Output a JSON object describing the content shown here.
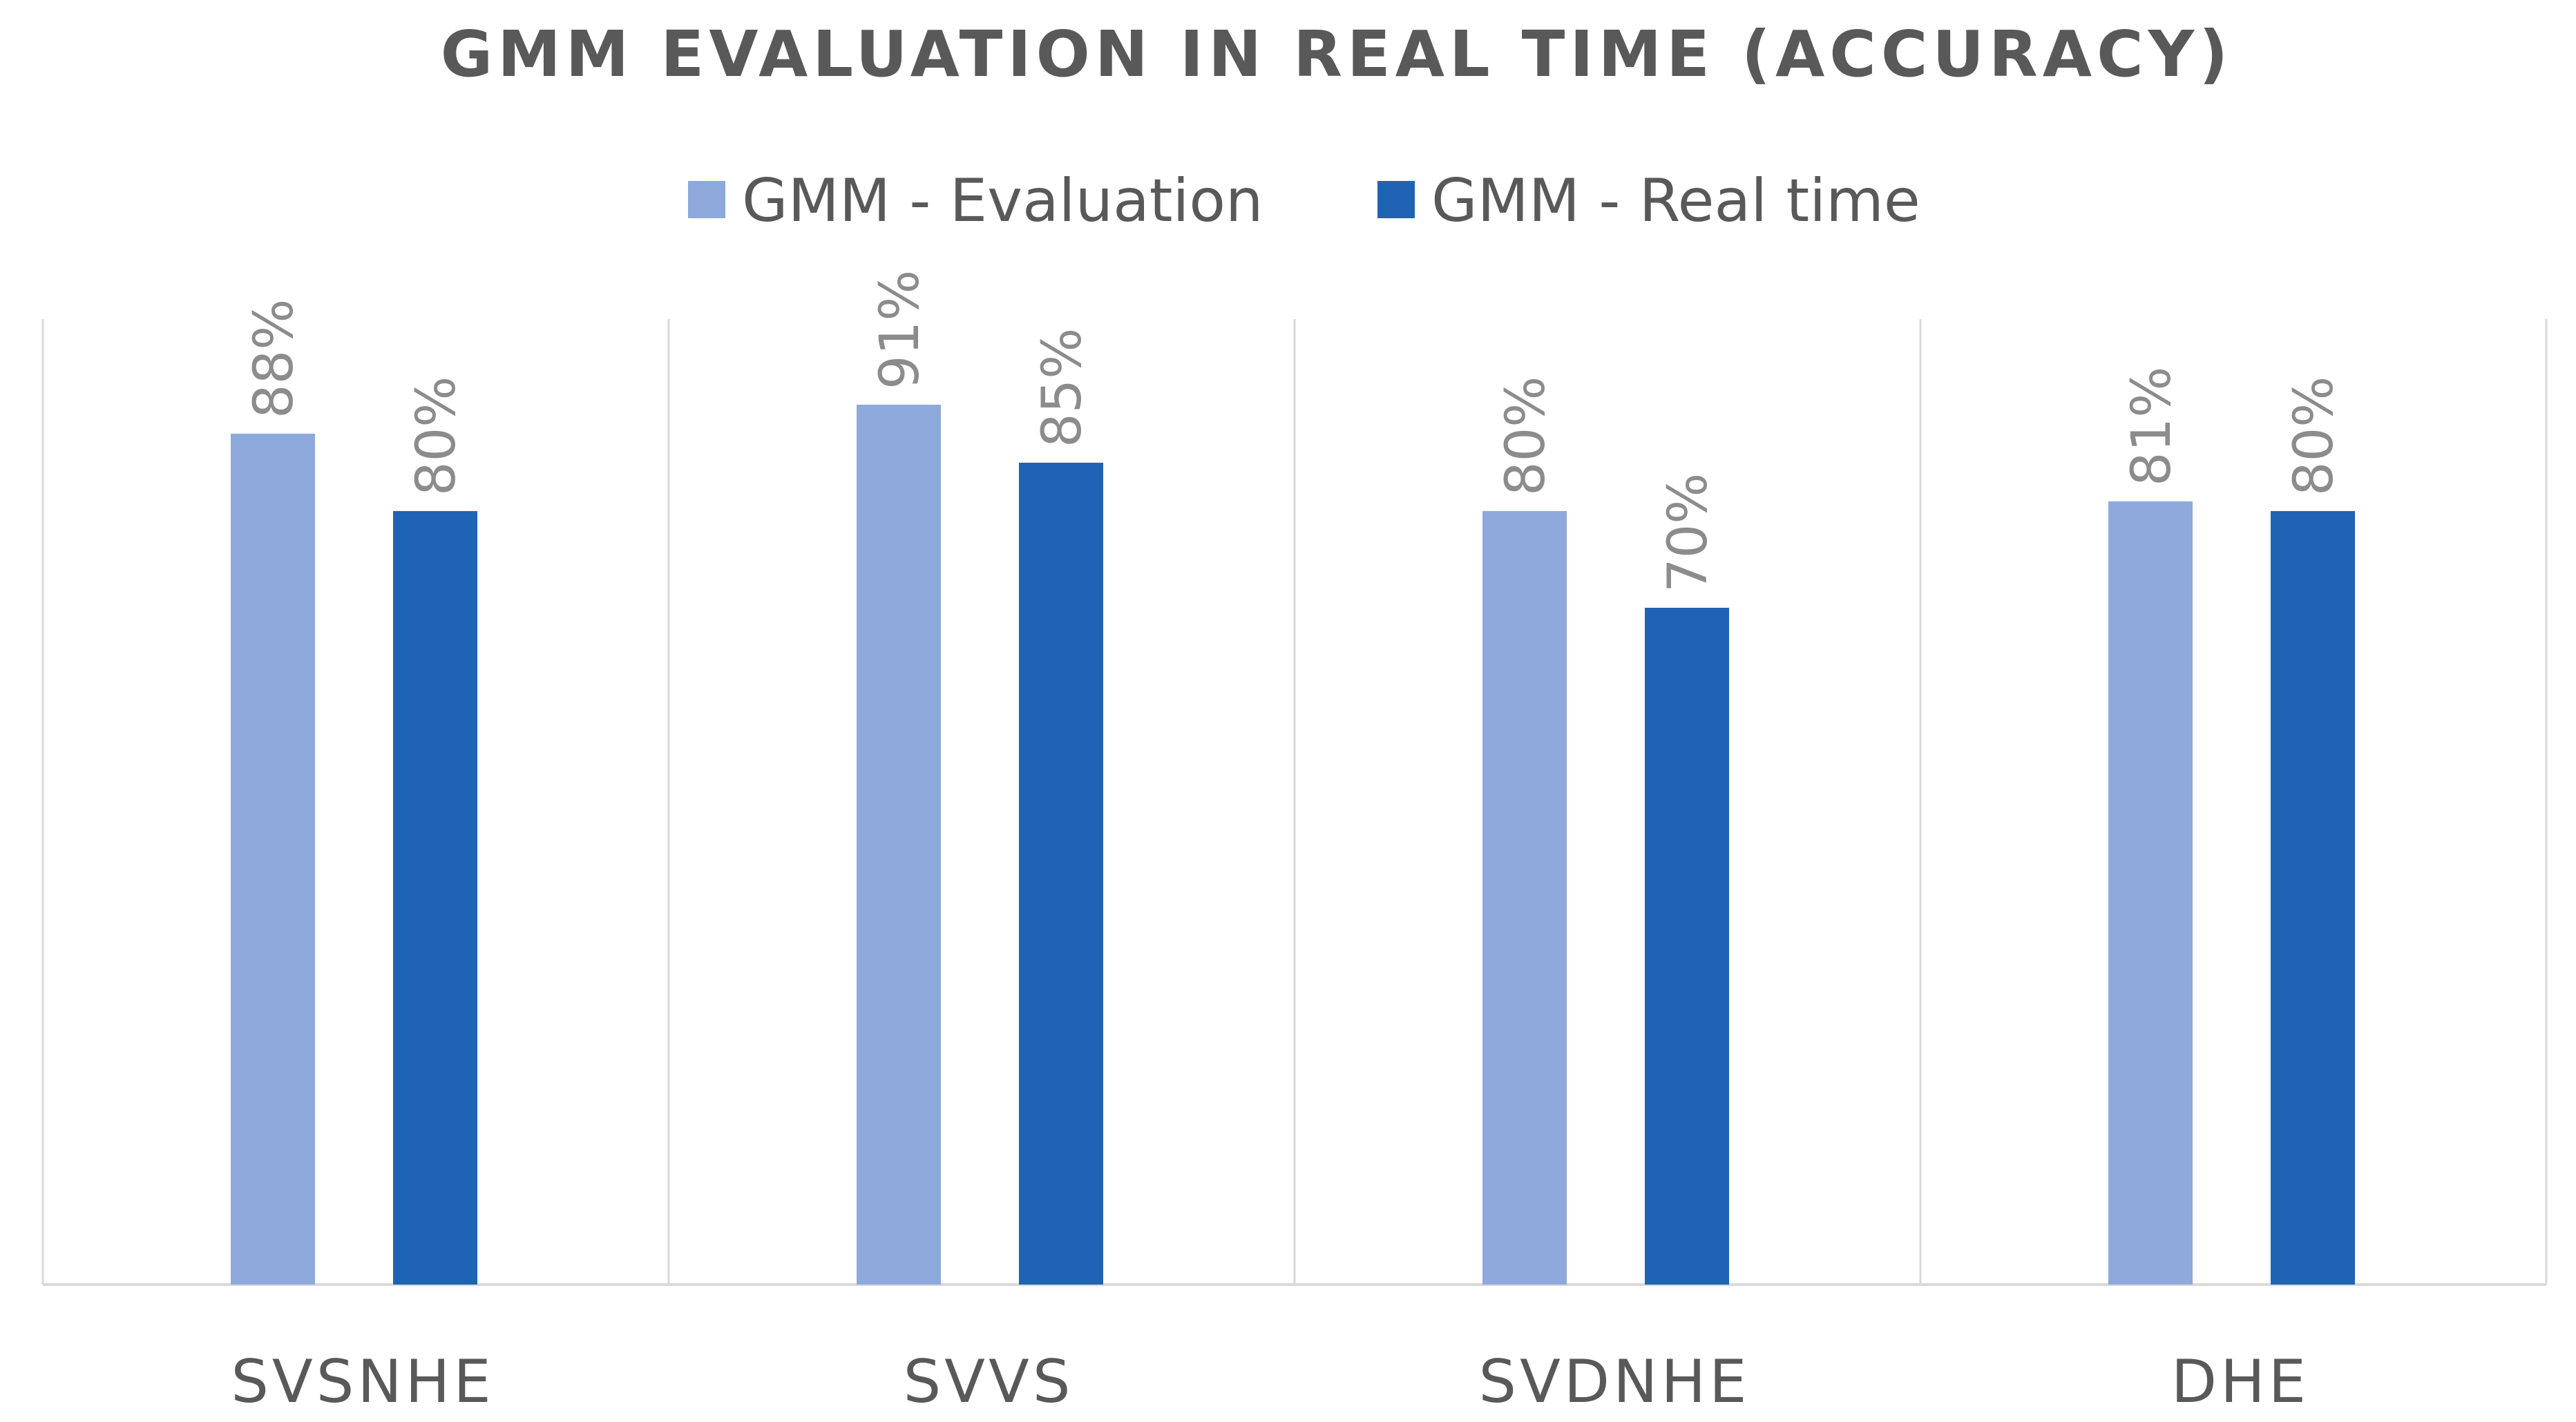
{
  "chart_data": {
    "type": "bar",
    "title": "GMM EVALUATION IN REAL TIME (ACCURACY)",
    "categories": [
      "SVSNHE",
      "SVVS",
      "SVDNHE",
      "DHE"
    ],
    "series": [
      {
        "name": "GMM - Evaluation",
        "values": [
          88,
          91,
          80,
          81
        ],
        "labels": [
          "88%",
          "91%",
          "80%",
          "81%"
        ],
        "color": "#8EA9DB"
      },
      {
        "name": "GMM - Real time",
        "values": [
          80,
          85,
          70,
          80
        ],
        "labels": [
          "80%",
          "85%",
          "70%",
          "80%"
        ],
        "color": "#1F63B5"
      }
    ],
    "ylim": [
      0,
      100
    ],
    "xlabel": "",
    "ylabel": "",
    "legend_position": "top",
    "grid": "vertical category separators"
  }
}
